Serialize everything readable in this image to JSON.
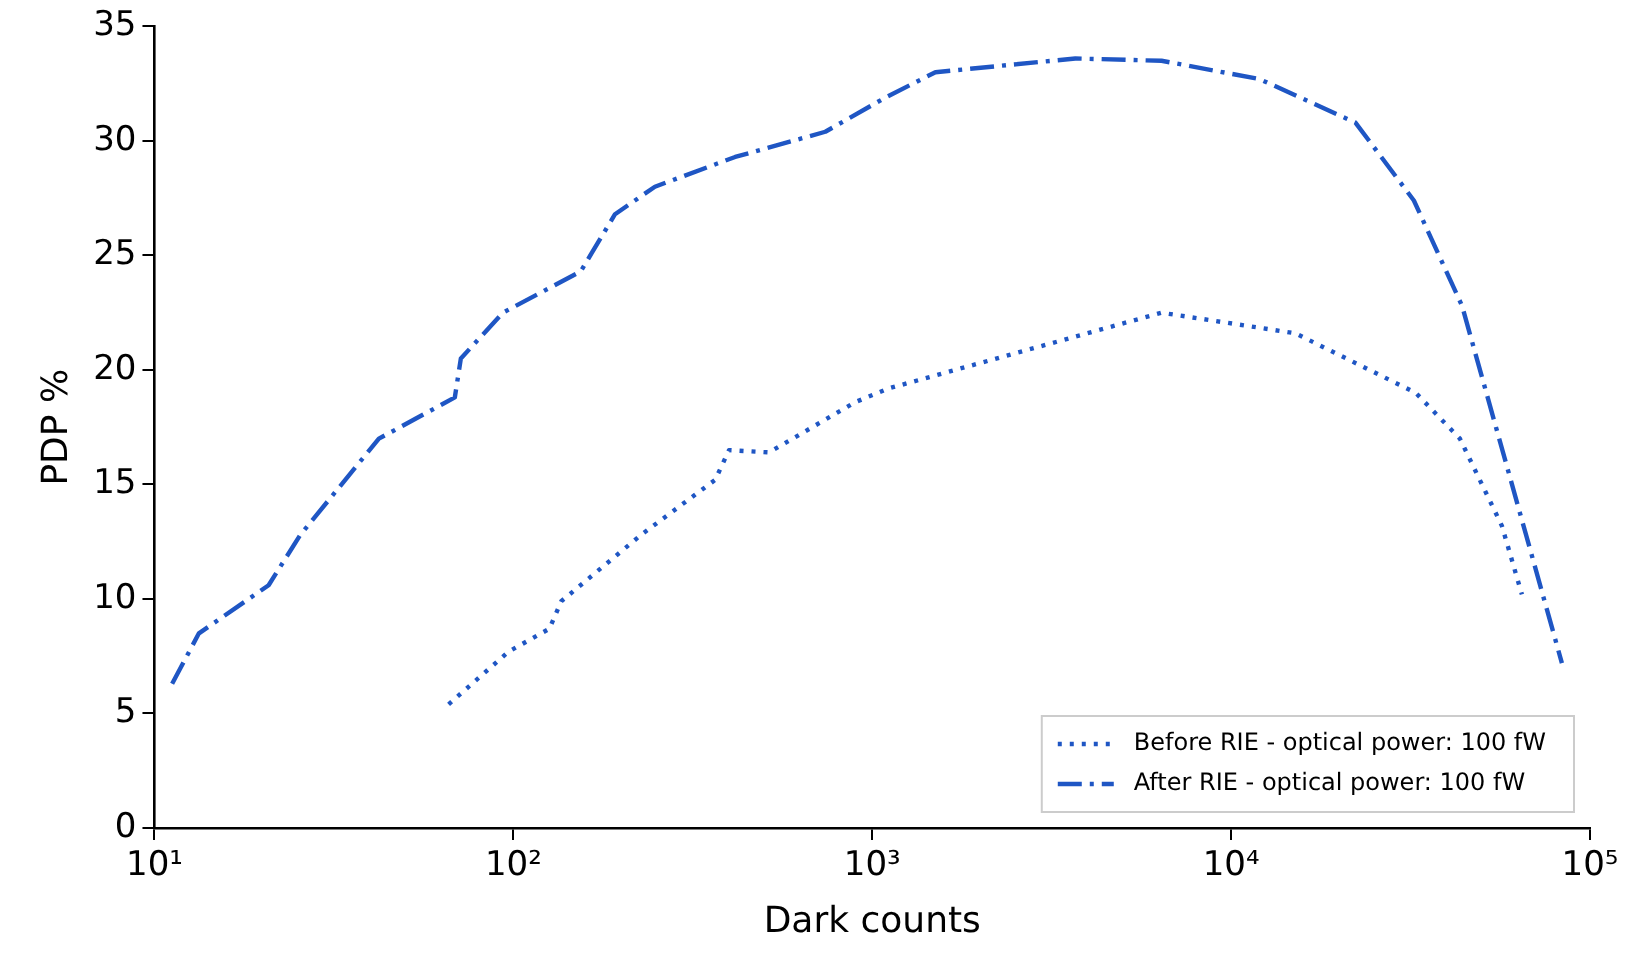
{
  "chart_data": {
    "type": "line",
    "xlabel": "Dark counts",
    "ylabel": "PDP %",
    "log": "x",
    "grid": false,
    "legend": "bottom right",
    "marker": "none",
    "xlim": [
      10,
      100000
    ],
    "xticks": [
      {
        "value": 10,
        "label": "10¹"
      },
      {
        "value": 100,
        "label": "10²"
      },
      {
        "value": 1000,
        "label": "10³"
      },
      {
        "value": 10000,
        "label": "10⁴"
      },
      {
        "value": 100000,
        "label": "10⁵"
      }
    ],
    "ylim": [
      0,
      35
    ],
    "yticks": [
      0,
      5,
      10,
      15,
      20,
      25,
      30,
      35
    ],
    "series": [
      {
        "name": "Before RIE - optical power: 100 fW",
        "color": "#1f56c4",
        "line_style": "dotted",
        "x": [
          66,
          97,
          126,
          136,
          227,
          365,
          399,
          516,
          898,
          1115,
          6400,
          15100,
          32700,
          43400,
          56800,
          64600
        ],
        "values": [
          5.4,
          7.7,
          8.7,
          9.9,
          12.8,
          15.2,
          16.5,
          16.4,
          18.6,
          19.2,
          22.5,
          21.6,
          19.0,
          17.0,
          13.2,
          10.2
        ]
      },
      {
        "name": "After RIE - optical power: 100 fW",
        "color": "#1f56c4",
        "line_style": "dashdot",
        "x": [
          11.2,
          13.3,
          20.8,
          25.5,
          42.2,
          68.7,
          71.4,
          93.5,
          154,
          192,
          248,
          415,
          740,
          1090,
          1500,
          3680,
          6400,
          12000,
          22200,
          32300,
          44000,
          83500
        ],
        "values": [
          6.3,
          8.5,
          10.6,
          12.8,
          17.0,
          18.8,
          20.5,
          22.5,
          24.3,
          26.8,
          28.0,
          29.3,
          30.4,
          31.9,
          33.0,
          33.6,
          33.5,
          32.7,
          30.8,
          27.4,
          22.8,
          7.2
        ]
      }
    ]
  }
}
